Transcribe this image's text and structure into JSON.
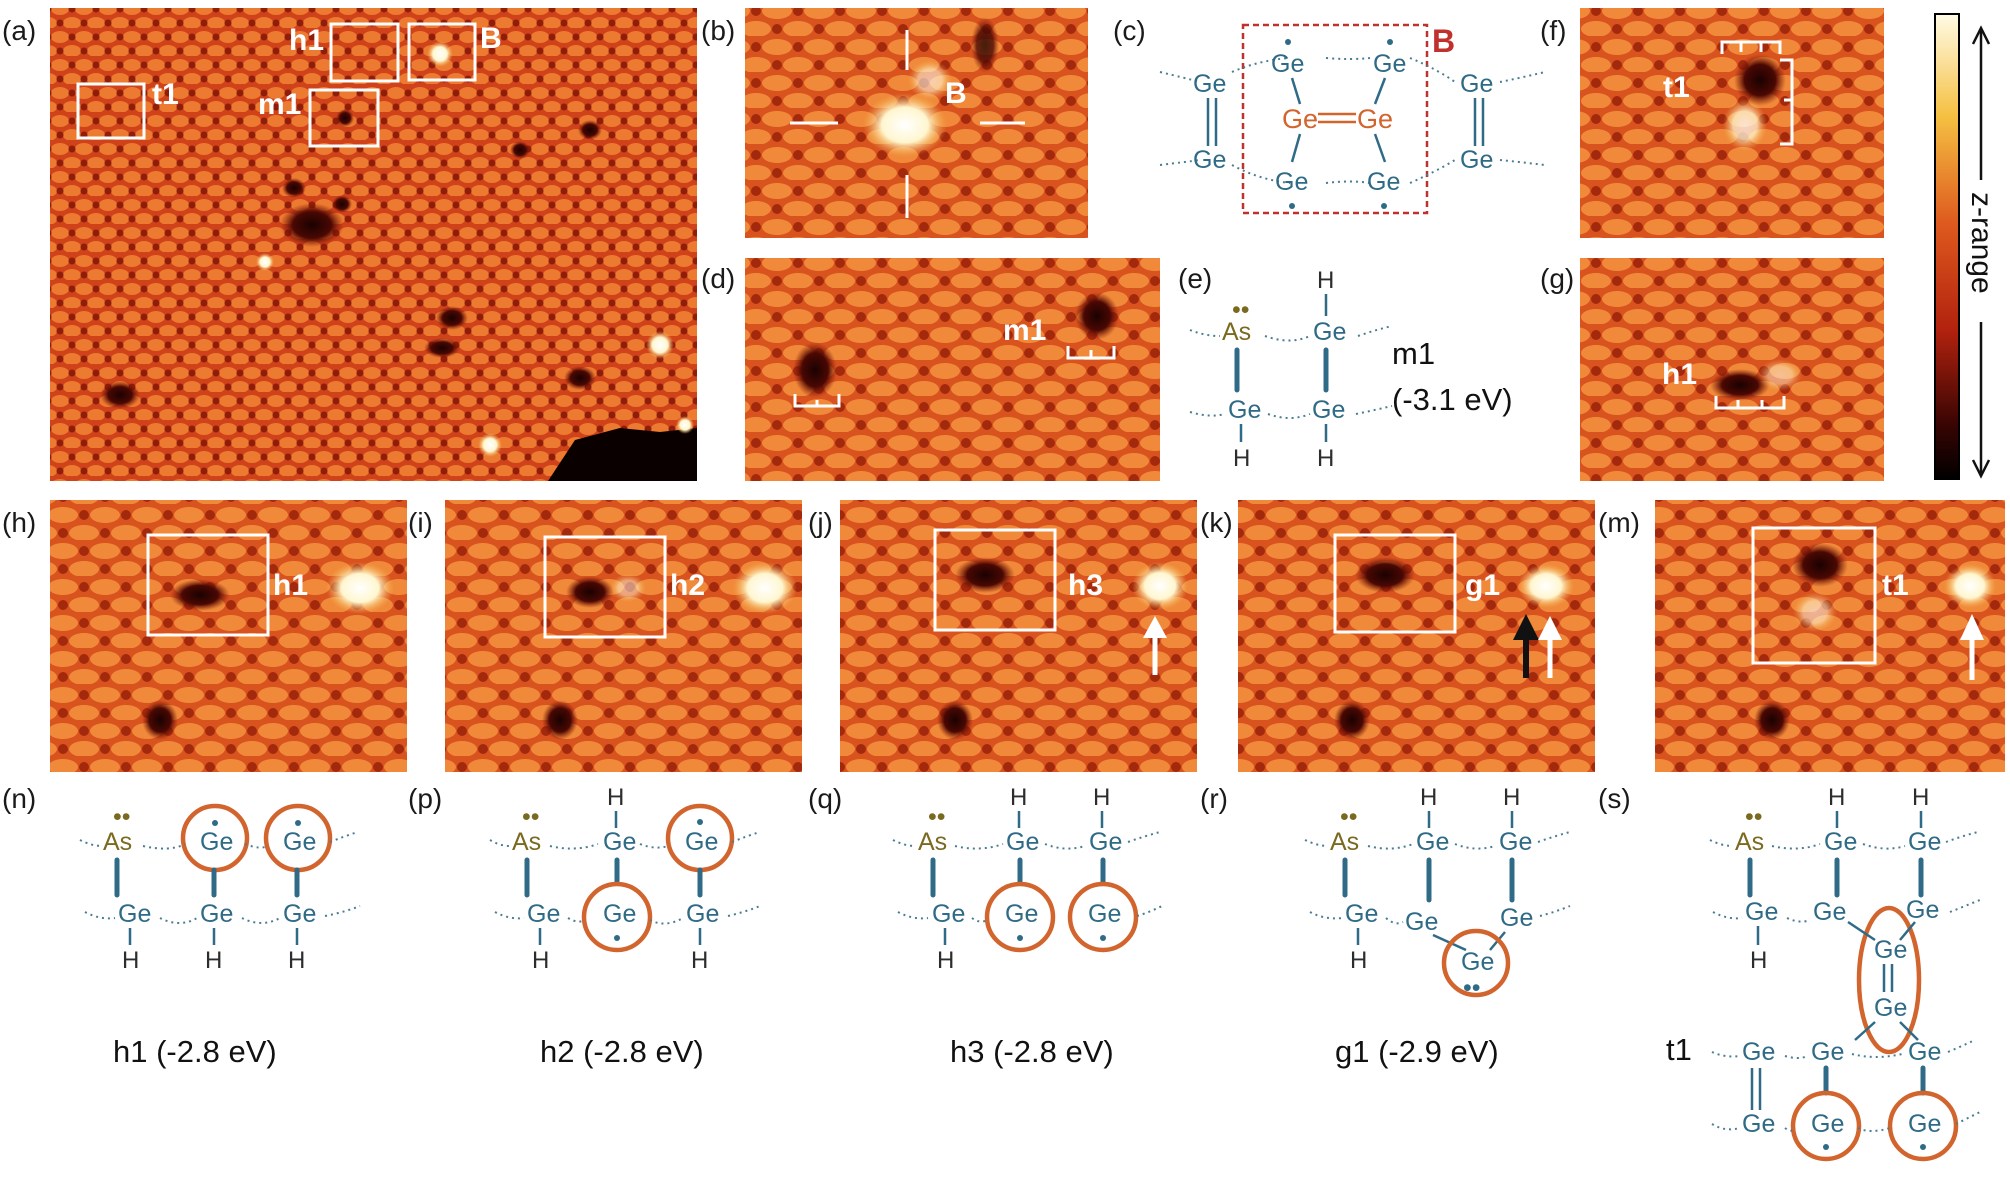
{
  "panel_labels": {
    "a": "(a)",
    "b": "(b)",
    "c": "(c)",
    "d": "(d)",
    "e": "(e)",
    "f": "(f)",
    "g": "(g)",
    "h": "(h)",
    "i": "(i)",
    "j": "(j)",
    "k": "(k)",
    "m": "(m)",
    "n": "(n)",
    "p": "(p)",
    "q": "(q)",
    "r": "(r)",
    "s": "(s)"
  },
  "stm_labels": {
    "a_t1": "t1",
    "a_h1": "h1",
    "a_m1": "m1",
    "a_B": "B",
    "b_B": "B",
    "d_m1": "m1",
    "f_t1": "t1",
    "g_h1": "h1",
    "h_h1": "h1",
    "i_h2": "h2",
    "j_h3": "h3",
    "k_g1": "g1",
    "m_t1": "t1"
  },
  "atoms": {
    "ge": "Ge",
    "as": "As",
    "h": "H",
    "lone_pair": "••",
    "radical": "•"
  },
  "schematic_labels": {
    "c_box": "B",
    "e_name": "m1",
    "e_energy": "(-3.1 eV)"
  },
  "captions": {
    "n": "h1 (-2.8 eV)",
    "p": "h2 (-2.8 eV)",
    "q": "h3 (-2.8 eV)",
    "r": "g1 (-2.9 eV)",
    "s": "t1"
  },
  "colorbar": {
    "label": "z-range",
    "colors": [
      "#fffbe6",
      "#f5c042",
      "#de5a1e",
      "#b2220e",
      "#3a0503",
      "#000000"
    ]
  },
  "colors": {
    "ge": "#2f6b86",
    "ge_orange": "#d2642d",
    "as": "#7a6a20",
    "highlight_ring": "#d2642d",
    "box_red": "#c0302c",
    "stm_base": "#d84316"
  }
}
